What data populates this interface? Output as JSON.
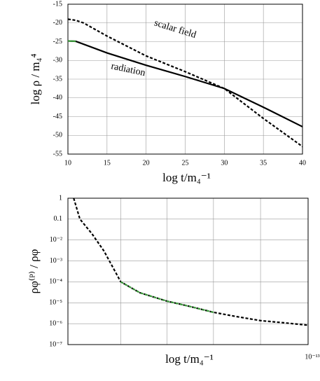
{
  "chart_data": [
    {
      "type": "line",
      "y_label": "log ρ / m₄⁴",
      "x_label": "log  t/m₄⁻¹",
      "xlim": [
        10,
        40
      ],
      "xticks": [
        10,
        15,
        20,
        25,
        30,
        35,
        40
      ],
      "ylim": [
        -55,
        -15
      ],
      "yticks": [
        -15,
        -20,
        -25,
        -30,
        -35,
        -40,
        -45,
        -50,
        -55
      ],
      "grid": true,
      "series": [
        {
          "name": "scalar field",
          "color": "#000000",
          "dash": true,
          "x": [
            10,
            11,
            12,
            15,
            20,
            25,
            30,
            35,
            40
          ],
          "values": [
            -19,
            -19.3,
            -20,
            -23.5,
            -28.8,
            -33,
            -37.5,
            -45.5,
            -53
          ]
        },
        {
          "name": "radiation",
          "color": "#000000",
          "dash": false,
          "x": [
            10,
            11,
            15,
            20,
            25,
            30,
            35,
            40
          ],
          "values": [
            -24.8,
            -24.9,
            -28,
            -31.3,
            -34.3,
            -37.5,
            -42.5,
            -47.7
          ]
        },
        {
          "color": "#3a9a3a",
          "dash": false,
          "x": [
            10,
            11
          ],
          "values": [
            -24.8,
            -24.9
          ]
        }
      ]
    },
    {
      "type": "line",
      "y_label": "ρφ⁽ᴾ⁾ / ρφ",
      "x_label": "log  t/m₄⁻¹",
      "x_note": "10⁻¹³",
      "log_y": true,
      "x_tick_labels": false,
      "xlim": [
        0,
        5
      ],
      "xticks": [
        1.1,
        2.06,
        3.03,
        4.01
      ],
      "ylim": [
        1e-07,
        1
      ],
      "yticks": [
        1,
        0.1,
        {
          "value": 0.01,
          "label": "10⁻²"
        },
        {
          "value": 0.001,
          "label": "10⁻³"
        },
        {
          "value": 0.0001,
          "label": "10⁻⁴"
        },
        {
          "value": 1e-05,
          "label": "10⁻⁵"
        },
        {
          "value": 1e-06,
          "label": "10⁻⁶"
        },
        {
          "value": 1e-07,
          "label": "10⁻⁷"
        }
      ],
      "grid": true,
      "series": [
        {
          "color": "#000000",
          "dash": true,
          "x": [
            0.12,
            0.25,
            0.5,
            0.75,
            1.1,
            1.5,
            2.06,
            2.5,
            3.03,
            3.5,
            4.01,
            4.5,
            4.99
          ],
          "values": [
            1,
            0.1,
            0.02,
            0.003,
            0.0001,
            3e-05,
            1.2e-05,
            7e-06,
            3.5e-06,
            2.2e-06,
            1.4e-06,
            1.1e-06,
            8.5e-07
          ]
        },
        {
          "color": "#3a9a3a",
          "dash": true,
          "x": [
            0.12,
            0.25,
            0.5,
            0.75,
            1.1,
            1.5,
            2.06,
            2.5,
            3.03,
            3.5,
            4.01,
            4.5,
            4.99
          ],
          "values": [
            null,
            null,
            null,
            null,
            0.0001,
            3e-05,
            1.2e-05,
            7e-06,
            3.5e-06,
            null,
            null,
            null,
            null
          ]
        }
      ]
    }
  ]
}
